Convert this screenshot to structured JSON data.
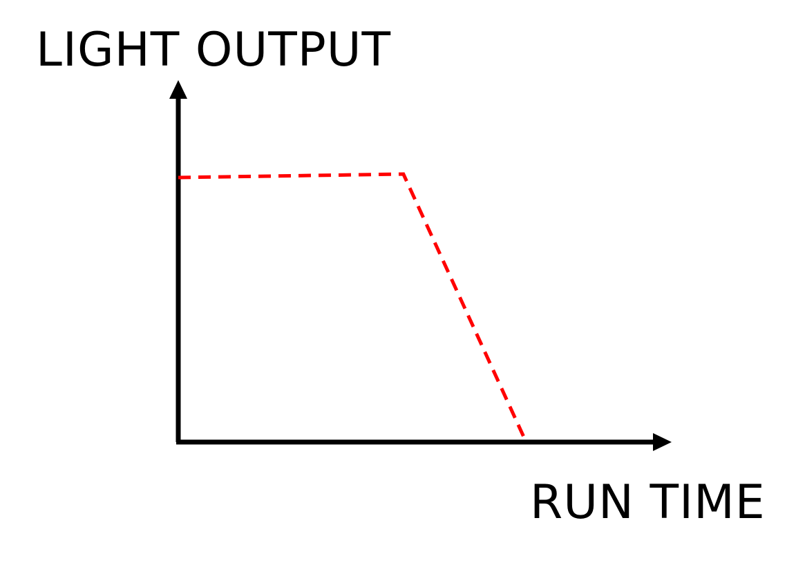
{
  "chart_data": {
    "type": "line",
    "title": "",
    "ylabel": "LIGHT OUTPUT",
    "xlabel": "RUN TIME",
    "xlim": [
      0,
      100
    ],
    "ylim": [
      0,
      100
    ],
    "grid": false,
    "ticks": false,
    "series": [
      {
        "x": [
          0,
          54.3,
          83.9
        ],
        "y": [
          100,
          100,
          0
        ],
        "style": "dashed",
        "color": "#ff0000"
      }
    ]
  },
  "colors": {
    "axis": "#000000",
    "line": "#ff0000",
    "background": "#ffffff"
  }
}
